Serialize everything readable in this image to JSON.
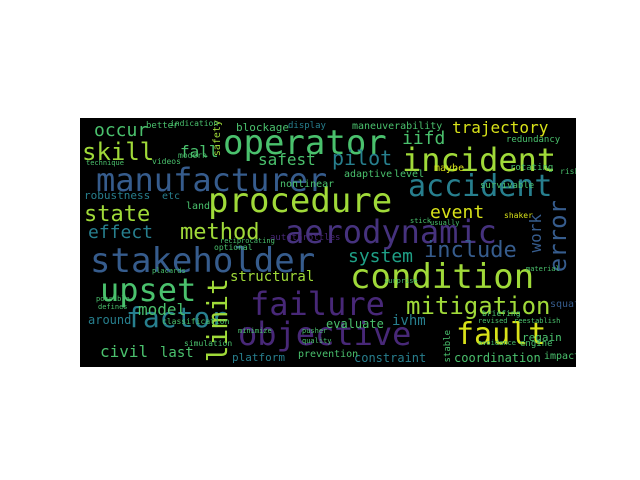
{
  "palette": {
    "purple": "#46327e",
    "violet": "#482878",
    "blue": "#365c8d",
    "teal": "#277f8e",
    "cyan": "#1fa187",
    "green": "#4ac16d",
    "lime": "#a0da39",
    "yellow": "#d8e219",
    "grey": "#3e4a89",
    "dim": "#2c728e"
  },
  "words": {
    "operator": "operator",
    "incident": "incident",
    "manufacturer": "manufacturer",
    "procedure": "procedure",
    "accident": "accident",
    "aerodynamic": "aerodynamic",
    "stakeholder": "stakeholder",
    "condition": "condition",
    "upset": "upset",
    "failure": "failure",
    "objective": "objective",
    "mitigation": "mitigation",
    "fault": "fault",
    "factor": "factor",
    "limit": "limit",
    "skill": "skill",
    "state": "state",
    "method": "method",
    "effect": "effect",
    "include": "include",
    "error": "error",
    "event": "event",
    "pilot": "pilot",
    "system": "system",
    "model": "model",
    "occur": "occur",
    "trajectory": "trajectory",
    "iifd": "iifd",
    "safest": "safest",
    "fall": "fall",
    "civil": "civil",
    "last": "last",
    "structural": "structural",
    "ivhm": "ivhm",
    "evaluate": "evaluate",
    "constraint": "constraint",
    "coordination": "coordination",
    "around": "around",
    "work": "work",
    "blockage": "blockage",
    "display": "display",
    "maneuverability": "maneuverability",
    "adaptive": "adaptive",
    "level": "level",
    "nonlinear": "nonlinear",
    "robustness": "robustness",
    "etc": "etc",
    "land": "land",
    "safety": "safety",
    "platform": "platform",
    "prevention": "prevention",
    "regain": "regain",
    "impact": "impact",
    "maybe": "maybe",
    "redundancy": "redundancy",
    "rotating": "rotating",
    "survivable": "survivable",
    "shaker": "shaker",
    "engine": "engine",
    "stable": "stable",
    "autothrottles": "autothrottles",
    "better": "better",
    "modern": "modern",
    "indication": "indication",
    "videos": "videos",
    "optional": "optional",
    "simulation": "simulation",
    "classification": "classification",
    "minimize": "minimize",
    "briefing": "briefing",
    "avoidance": "avoidance",
    "reciprocating": "reciprocating",
    "technique": "technique",
    "placards": "placards",
    "pusher": "pusher",
    "quality": "quality",
    "stick": "stick",
    "usually": "usually",
    "revised": "revised",
    "defines": "defines",
    "possible": "possible",
    "surprise": "surprise",
    "risk": "risk",
    "material": "material",
    "squat": "squat",
    "reestablish": "reestablish"
  }
}
